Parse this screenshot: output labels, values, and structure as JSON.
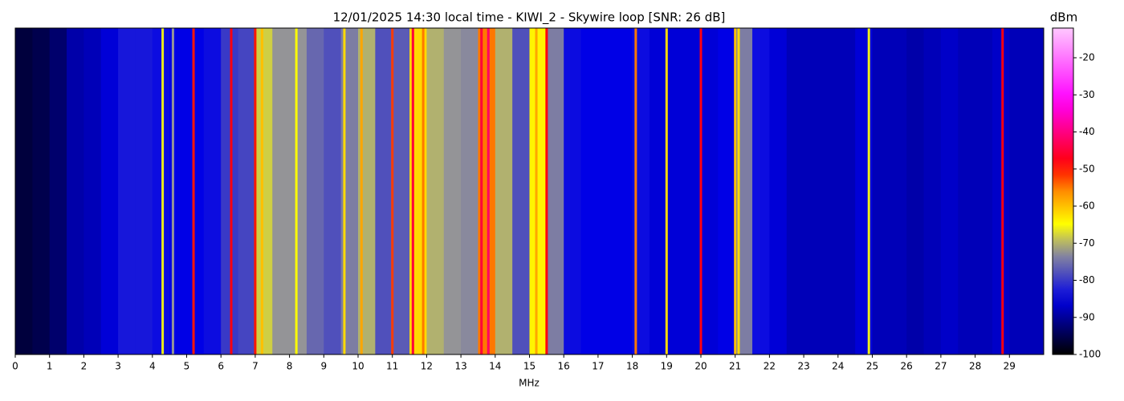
{
  "chart_data": {
    "type": "spectrogram",
    "title": "12/01/2025 14:30 local time - KIWI_2 - Skywire loop [SNR: 26 dB]",
    "xlabel": "MHz",
    "colorbar_label": "dBm",
    "xlim": [
      0,
      30
    ],
    "xticks": [
      0,
      1,
      2,
      3,
      4,
      5,
      6,
      7,
      8,
      9,
      10,
      11,
      12,
      13,
      14,
      15,
      16,
      17,
      18,
      19,
      20,
      21,
      22,
      23,
      24,
      25,
      26,
      27,
      28,
      29
    ],
    "clim": [
      -100,
      -12
    ],
    "cticks": [
      -100,
      -90,
      -80,
      -70,
      -60,
      -50,
      -40,
      -30,
      -20
    ],
    "x": [
      0.25,
      0.75,
      1.25,
      1.75,
      2.25,
      2.75,
      3.25,
      3.75,
      4.25,
      4.75,
      5.25,
      5.75,
      6.25,
      6.75,
      7.25,
      7.75,
      8.25,
      8.75,
      9.25,
      9.75,
      10.25,
      10.75,
      11.25,
      11.75,
      12.25,
      12.75,
      13.25,
      13.75,
      14.25,
      14.75,
      15.25,
      15.75,
      16.25,
      16.75,
      17.25,
      17.75,
      18.25,
      18.75,
      19.25,
      19.75,
      20.25,
      20.75,
      21.25,
      21.75,
      22.25,
      22.75,
      23.25,
      23.75,
      24.25,
      24.75,
      25.25,
      25.75,
      26.25,
      26.75,
      27.25,
      27.75,
      28.25,
      28.75,
      29.25,
      29.75
    ],
    "values": [
      -96,
      -95,
      -93,
      -89,
      -88,
      -86,
      -83,
      -83,
      -84,
      -85,
      -85,
      -84,
      -80,
      -79,
      -68,
      -72,
      -72,
      -76,
      -78,
      -74,
      -70,
      -78,
      -77,
      -62,
      -70,
      -72,
      -73,
      -55,
      -70,
      -78,
      -64,
      -74,
      -84,
      -85,
      -85,
      -85,
      -84,
      -86,
      -86,
      -86,
      -86,
      -85,
      -74,
      -84,
      -86,
      -88,
      -88,
      -88,
      -88,
      -86,
      -88,
      -88,
      -89,
      -88,
      -87,
      -88,
      -88,
      -87,
      -88,
      -88
    ],
    "carriers_x": [
      4.3,
      4.6,
      5.2,
      6.3,
      7.0,
      7.2,
      8.2,
      9.6,
      10.1,
      11.0,
      11.6,
      11.9,
      13.6,
      13.8,
      15.2,
      15.5,
      18.1,
      19.0,
      20.0,
      21.0,
      21.1,
      24.9,
      28.8
    ],
    "carriers_values": [
      -66,
      -72,
      -50,
      -48,
      -50,
      -60,
      -65,
      -62,
      -58,
      -52,
      -45,
      -55,
      -45,
      -42,
      -58,
      -48,
      -55,
      -62,
      -48,
      -60,
      -62,
      -66,
      -48
    ]
  }
}
